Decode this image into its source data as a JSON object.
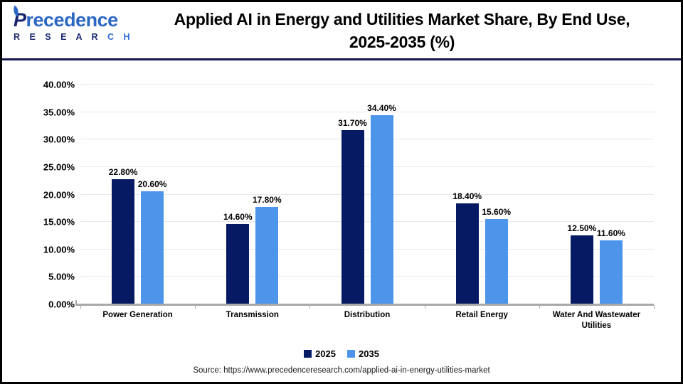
{
  "header": {
    "logo": {
      "brand_initial": "P",
      "brand_rest": "recedence",
      "sub_dark": "R E S E A R",
      "sub_blue": " C H"
    },
    "title_line1": "Applied AI in Energy and Utilities Market Share, By End Use,",
    "title_line2": "2025-2035 (%)"
  },
  "chart_data": {
    "type": "bar",
    "title": "Applied AI in Energy and Utilities Market Share, By End Use, 2025-2035 (%)",
    "categories": [
      "Power Generation",
      "Transmission",
      "Distribution",
      "Retail Energy",
      "Water And Wastewater Utilities"
    ],
    "series": [
      {
        "name": "2025",
        "color": "#061963",
        "values": [
          22.8,
          14.6,
          31.7,
          18.4,
          12.5
        ],
        "labels": [
          "22.80%",
          "14.60%",
          "31.70%",
          "18.40%",
          "12.50%"
        ]
      },
      {
        "name": "2035",
        "color": "#4d95ea",
        "values": [
          20.6,
          17.8,
          34.4,
          15.6,
          11.6
        ],
        "labels": [
          "20.60%",
          "17.80%",
          "34.40%",
          "15.60%",
          "11.60%"
        ]
      }
    ],
    "ylim": [
      0,
      40
    ],
    "ytick_step": 5,
    "ytick_labels": [
      "0.00%",
      "5.00%",
      "10.00%",
      "15.00%",
      "20.00%",
      "25.00%",
      "30.00%",
      "35.00%",
      "40.00%"
    ],
    "grid": true,
    "legend_position": "bottom",
    "gridline_color": "#e9e9e9",
    "axis_color": "#a8a8a8"
  },
  "footer": {
    "source_text": "Source: https://www.precedenceresearch.com/applied-ai-in-energy-utilities-market"
  }
}
